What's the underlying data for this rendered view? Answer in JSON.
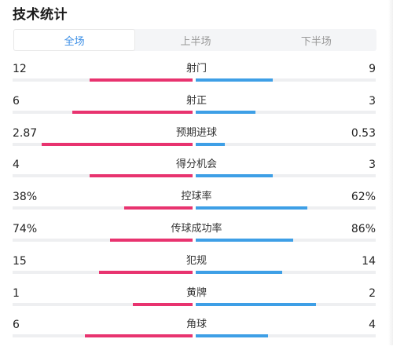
{
  "header": {
    "title": "技术统计"
  },
  "tabs": [
    {
      "label": "全场",
      "active": true
    },
    {
      "label": "上半场",
      "active": false
    },
    {
      "label": "下半场",
      "active": false
    }
  ],
  "colors": {
    "home": "#e8336f",
    "away": "#3e9fe6",
    "active_tab": "#3a8ee6"
  },
  "stats": [
    {
      "label": "射门",
      "home": "12",
      "away": "9",
      "home_share": 0.57,
      "away_share": 0.43
    },
    {
      "label": "射正",
      "home": "6",
      "away": "3",
      "home_share": 0.67,
      "away_share": 0.33
    },
    {
      "label": "预期进球",
      "home": "2.87",
      "away": "0.53",
      "home_share": 0.84,
      "away_share": 0.16
    },
    {
      "label": "得分机会",
      "home": "4",
      "away": "3",
      "home_share": 0.57,
      "away_share": 0.43
    },
    {
      "label": "控球率",
      "home": "38%",
      "away": "62%",
      "home_share": 0.38,
      "away_share": 0.62
    },
    {
      "label": "传球成功率",
      "home": "74%",
      "away": "86%",
      "home_share": 0.46,
      "away_share": 0.54
    },
    {
      "label": "犯规",
      "home": "15",
      "away": "14",
      "home_share": 0.52,
      "away_share": 0.48
    },
    {
      "label": "黄牌",
      "home": "1",
      "away": "2",
      "home_share": 0.33,
      "away_share": 0.67
    },
    {
      "label": "角球",
      "home": "6",
      "away": "4",
      "home_share": 0.6,
      "away_share": 0.4
    }
  ]
}
